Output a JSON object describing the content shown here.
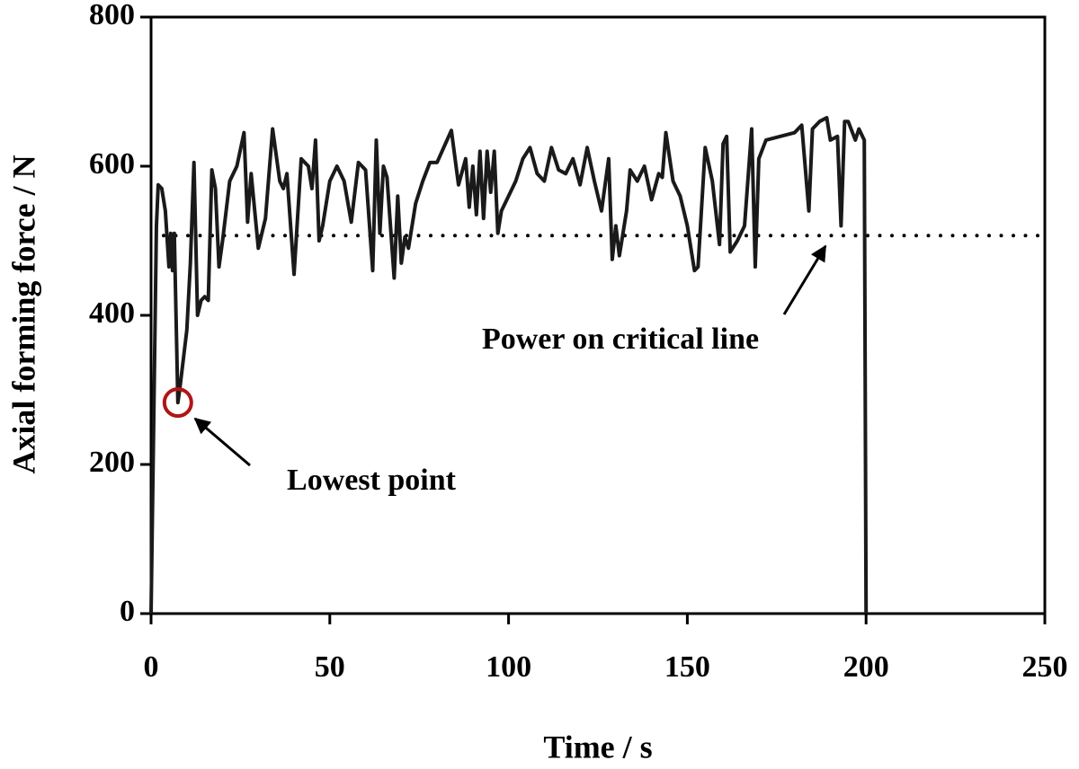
{
  "chart_data": {
    "type": "line",
    "x_label": "Time / s",
    "y_label": "Axial forming force  / N",
    "xlim": [
      0,
      250
    ],
    "ylim": [
      0,
      800
    ],
    "xticks": [
      0,
      50,
      100,
      150,
      200,
      250
    ],
    "yticks": [
      0,
      200,
      400,
      600,
      800
    ],
    "x": [
      0,
      1.5,
      2,
      3,
      4,
      5,
      5.5,
      6,
      6.5,
      7.5,
      8,
      10,
      11,
      12,
      13,
      14,
      15,
      16,
      17,
      18,
      19,
      20,
      22,
      24,
      26,
      27,
      28,
      30,
      32,
      34,
      36,
      37,
      38,
      40,
      42,
      44,
      45,
      46,
      47,
      48,
      50,
      52,
      54,
      56,
      58,
      60,
      62,
      63,
      64,
      65,
      66,
      68,
      69,
      70,
      71,
      72,
      74,
      76,
      78,
      80,
      84,
      86,
      88,
      89,
      90,
      91,
      92,
      93,
      94,
      95,
      96,
      97,
      98,
      100,
      102,
      104,
      106,
      108,
      110,
      112,
      114,
      116,
      118,
      120,
      122,
      124,
      126,
      128,
      129,
      130,
      131,
      133,
      134,
      136,
      138,
      140,
      142,
      143,
      144,
      146,
      148,
      150,
      152,
      153,
      155,
      157,
      159,
      160,
      161,
      162,
      164,
      166,
      168,
      169,
      170,
      172,
      180,
      182,
      184,
      185,
      187,
      189,
      190,
      192,
      193,
      194,
      195,
      197,
      198,
      199.5,
      200
    ],
    "series": [
      {
        "color": "#1a1a1a",
        "values": [
          0,
          520,
          575,
          570,
          540,
          465,
          510,
          460,
          510,
          283,
          300,
          380,
          470,
          605,
          400,
          420,
          425,
          420,
          595,
          570,
          465,
          500,
          580,
          600,
          645,
          525,
          590,
          490,
          530,
          650,
          580,
          570,
          590,
          455,
          610,
          600,
          570,
          635,
          500,
          520,
          580,
          600,
          580,
          525,
          605,
          595,
          460,
          635,
          510,
          600,
          585,
          450,
          560,
          470,
          505,
          490,
          550,
          580,
          605,
          605,
          648,
          575,
          610,
          545,
          600,
          535,
          620,
          530,
          620,
          565,
          620,
          510,
          540,
          560,
          580,
          610,
          625,
          590,
          580,
          625,
          595,
          590,
          610,
          575,
          625,
          580,
          540,
          610,
          475,
          520,
          480,
          540,
          595,
          580,
          600,
          555,
          590,
          585,
          645,
          580,
          560,
          520,
          460,
          465,
          625,
          580,
          495,
          630,
          640,
          485,
          500,
          520,
          650,
          465,
          610,
          635,
          645,
          655,
          540,
          650,
          660,
          665,
          635,
          640,
          520,
          660,
          660,
          635,
          650,
          635,
          0
        ]
      }
    ],
    "critical_line": {
      "value": 507,
      "label": "Power on critical line"
    },
    "lowest_point": {
      "x": 7.5,
      "y": 283,
      "label": "Lowest point"
    }
  }
}
